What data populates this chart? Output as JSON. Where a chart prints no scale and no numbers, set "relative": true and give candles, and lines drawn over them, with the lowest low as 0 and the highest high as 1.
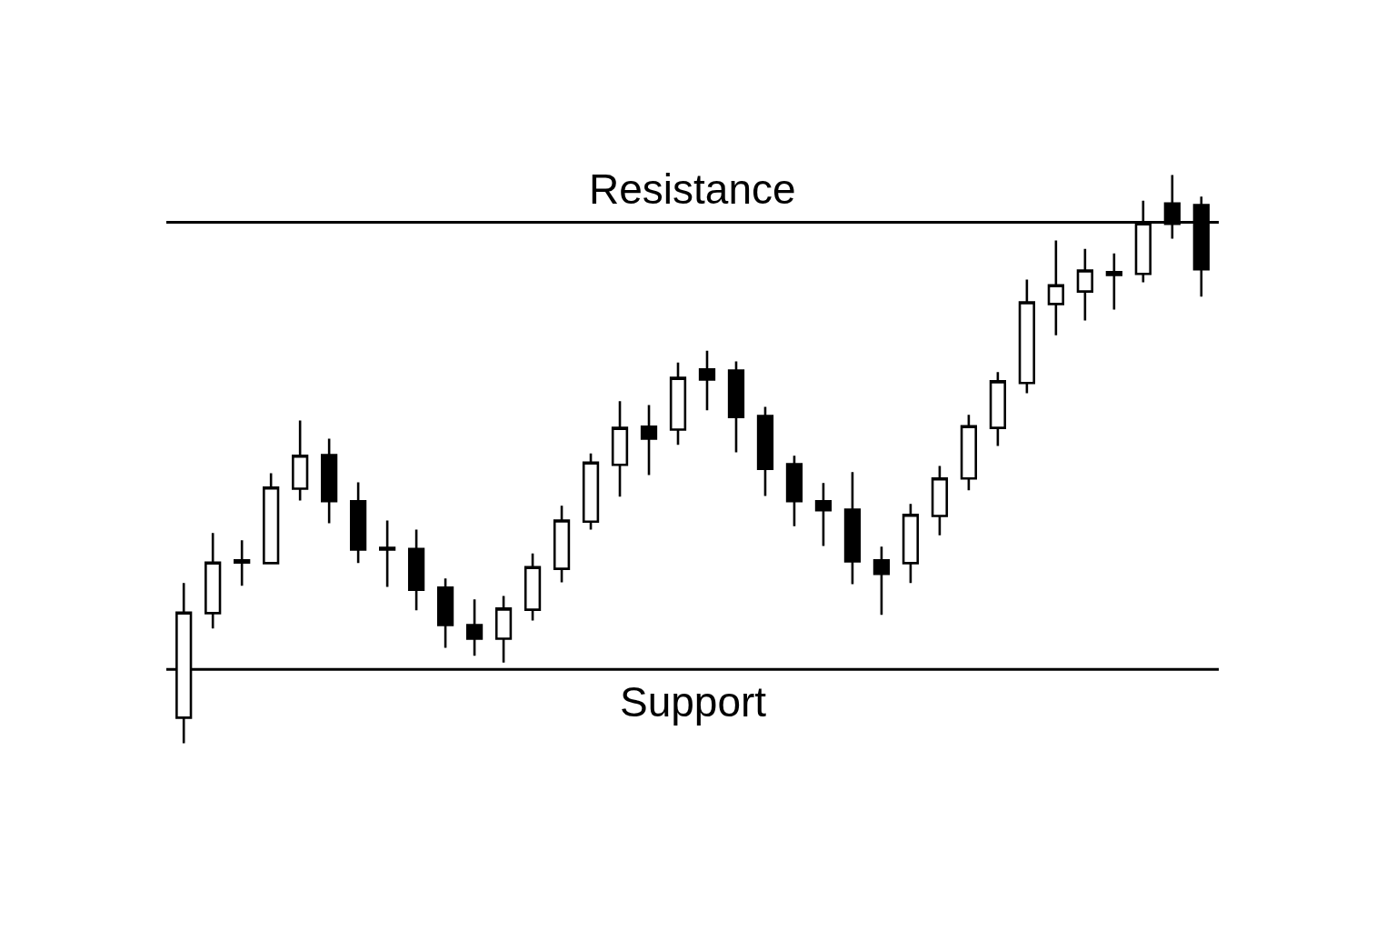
{
  "chart_data": {
    "type": "candlestick",
    "relative": true,
    "categories": [
      null,
      null,
      null,
      null,
      null,
      null,
      null,
      null,
      null,
      null,
      null,
      null,
      null,
      null,
      null,
      null,
      null,
      null,
      null,
      null,
      null,
      null,
      null,
      null,
      null,
      null,
      null,
      null,
      null,
      null,
      null,
      null,
      null,
      null,
      null,
      null
    ],
    "ohlc": [
      [
        0.045,
        0.282,
        0.0,
        0.23
      ],
      [
        0.229,
        0.37,
        0.202,
        0.318
      ],
      [
        0.318,
        0.357,
        0.277,
        0.322
      ],
      [
        0.317,
        0.475,
        0.317,
        0.45
      ],
      [
        0.448,
        0.568,
        0.427,
        0.506
      ],
      [
        0.507,
        0.536,
        0.387,
        0.426
      ],
      [
        0.426,
        0.459,
        0.317,
        0.341
      ],
      [
        0.344,
        0.392,
        0.275,
        0.341
      ],
      [
        0.342,
        0.376,
        0.234,
        0.27
      ],
      [
        0.274,
        0.29,
        0.168,
        0.208
      ],
      [
        0.208,
        0.253,
        0.154,
        0.184
      ],
      [
        0.184,
        0.259,
        0.142,
        0.237
      ],
      [
        0.235,
        0.334,
        0.216,
        0.31
      ],
      [
        0.307,
        0.418,
        0.283,
        0.392
      ],
      [
        0.39,
        0.51,
        0.376,
        0.494
      ],
      [
        0.49,
        0.602,
        0.434,
        0.555
      ],
      [
        0.557,
        0.595,
        0.472,
        0.536
      ],
      [
        0.552,
        0.67,
        0.525,
        0.643
      ],
      [
        0.658,
        0.691,
        0.586,
        0.64
      ],
      [
        0.656,
        0.672,
        0.512,
        0.574
      ],
      [
        0.576,
        0.592,
        0.435,
        0.483
      ],
      [
        0.491,
        0.506,
        0.382,
        0.426
      ],
      [
        0.426,
        0.458,
        0.347,
        0.41
      ],
      [
        0.411,
        0.477,
        0.28,
        0.32
      ],
      [
        0.322,
        0.346,
        0.226,
        0.298
      ],
      [
        0.317,
        0.421,
        0.282,
        0.402
      ],
      [
        0.4,
        0.488,
        0.366,
        0.466
      ],
      [
        0.466,
        0.578,
        0.445,
        0.558
      ],
      [
        0.555,
        0.653,
        0.523,
        0.637
      ],
      [
        0.634,
        0.816,
        0.616,
        0.776
      ],
      [
        0.773,
        0.885,
        0.718,
        0.806
      ],
      [
        0.795,
        0.87,
        0.744,
        0.832
      ],
      [
        0.829,
        0.862,
        0.763,
        0.824
      ],
      [
        0.826,
        0.955,
        0.811,
        0.915
      ],
      [
        0.95,
        1.0,
        0.888,
        0.914
      ],
      [
        0.947,
        0.962,
        0.786,
        0.834
      ]
    ],
    "ref_lines": [
      {
        "axis": "y",
        "value": 0.917,
        "label": "Resistance",
        "color": "#000000"
      },
      {
        "axis": "y",
        "value": 0.13,
        "label": "Support",
        "color": "#000000"
      }
    ]
  }
}
